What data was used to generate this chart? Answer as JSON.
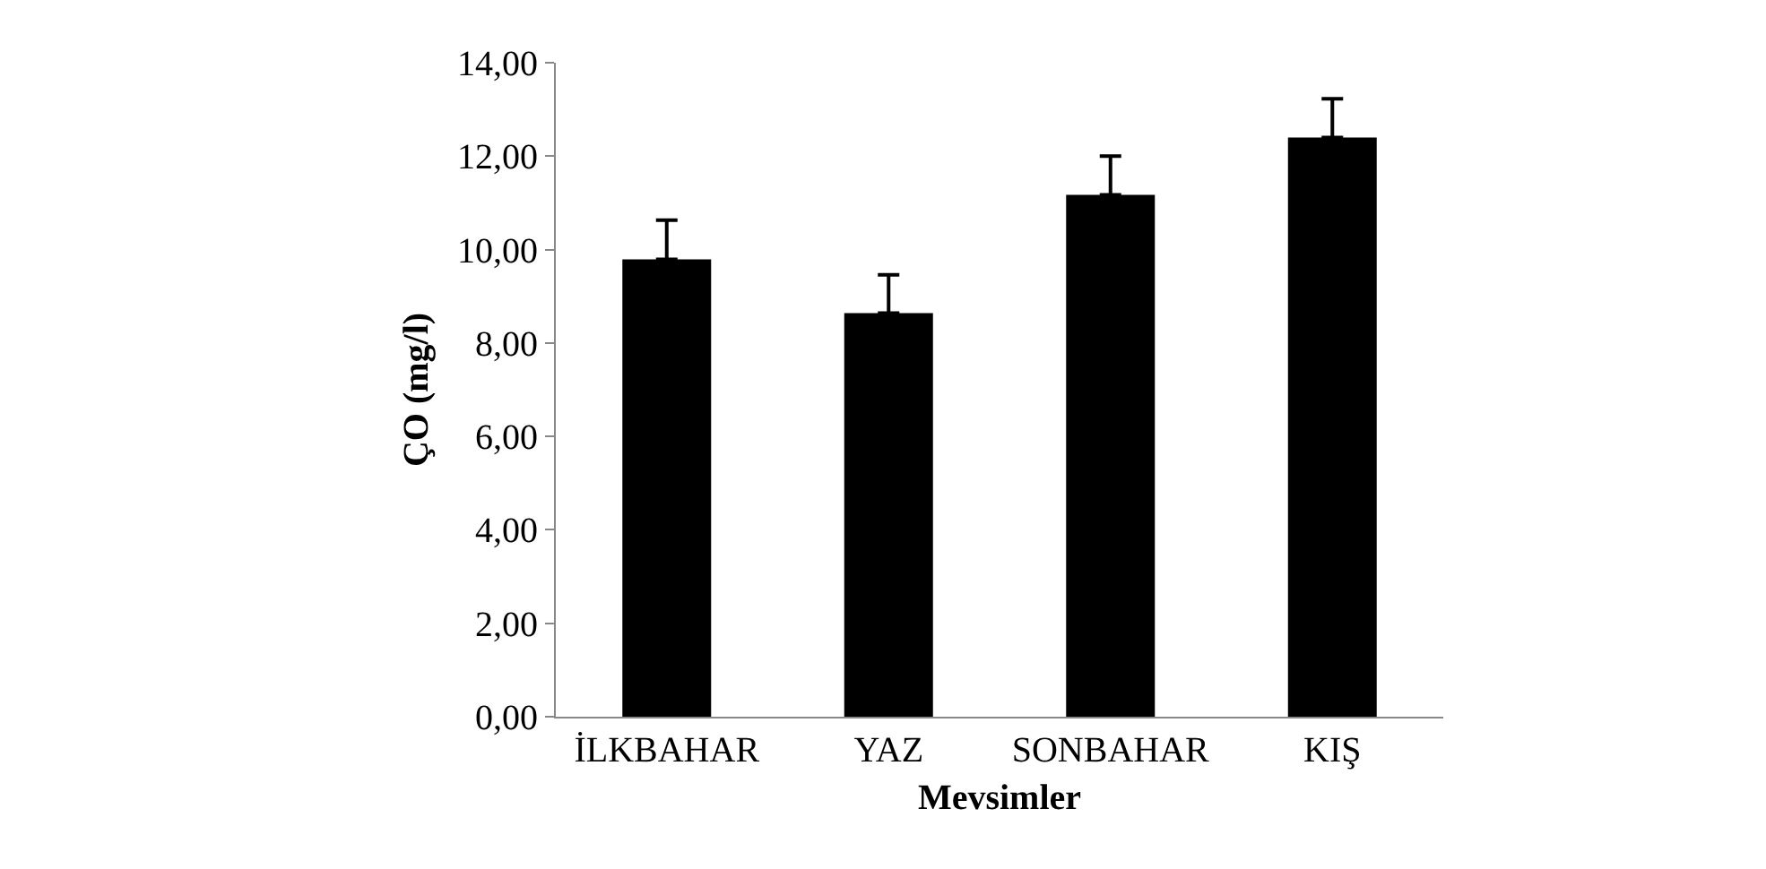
{
  "chart_data": {
    "type": "bar",
    "xlabel": "Mevsimler",
    "ylabel": "ÇO (mg/l)",
    "categories": [
      "İLKBAHAR",
      "YAZ",
      "SONBAHAR",
      "KIŞ"
    ],
    "values": [
      9.79,
      8.64,
      11.17,
      12.4
    ],
    "errors": [
      [
        9.79,
        10.63
      ],
      [
        8.64,
        9.46
      ],
      [
        11.17,
        12.0
      ],
      [
        12.4,
        13.23
      ]
    ],
    "color": "#000000",
    "ylim": [
      0,
      14
    ],
    "yticks": [
      {
        "value": 0,
        "label": "0,00"
      },
      {
        "value": 2,
        "label": "2,00"
      },
      {
        "value": 4,
        "label": "4,00"
      },
      {
        "value": 6,
        "label": "6,00"
      },
      {
        "value": 8,
        "label": "8,00"
      },
      {
        "value": 10,
        "label": "10,00"
      },
      {
        "value": 12,
        "label": "12,00"
      },
      {
        "value": 14,
        "label": "14,00"
      }
    ],
    "grid": false
  }
}
